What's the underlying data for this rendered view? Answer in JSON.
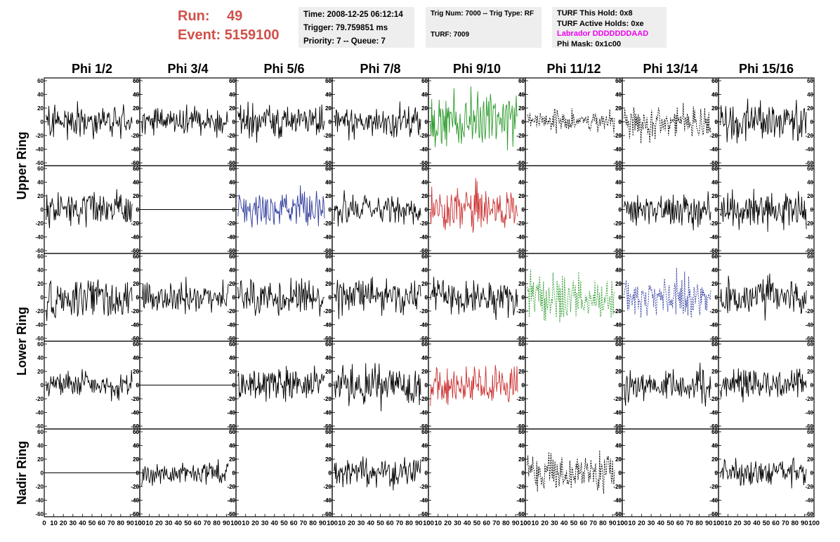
{
  "header": {
    "run_label": "Run:",
    "run_value": "49",
    "event_label": "Event:",
    "event_value": "5159100",
    "time": "Time: 2008-12-25 06:12:14",
    "trigger": "Trigger: 79.759851 ms",
    "priority": "Priority: 7 -- Queue: 7",
    "trig_num": "Trig Num: 7000 -- Trig Type: RF",
    "turf": "TURF: 7009",
    "turf_hold": "TURF This Hold: 0x8",
    "turf_active": "TURF Active Holds: 0xe",
    "labrador": "Labrador DDDDDDDAAD",
    "phi_mask": "Phi Mask: 0x1c00"
  },
  "colors": {
    "green": "#2a9a2a",
    "red": "#cc3333",
    "blue": "#2e3a9c",
    "black": "#000000",
    "header_red": "#d0504a",
    "magenta": "#ee00ee"
  },
  "chart_data": {
    "type": "line",
    "columns": [
      "Phi 1/2",
      "Phi 3/4",
      "Phi 5/6",
      "Phi 7/8",
      "Phi 9/10",
      "Phi 11/12",
      "Phi 13/14",
      "Phi 15/16"
    ],
    "rows": [
      "Upper Ring",
      "Lower Ring",
      "Nadir Ring"
    ],
    "ylim": [
      -60,
      60
    ],
    "yticks": [
      -60,
      -40,
      -20,
      0,
      20,
      40,
      60
    ],
    "xlim": [
      0,
      100
    ],
    "xticks": [
      0,
      10,
      20,
      30,
      40,
      50,
      60,
      70,
      80,
      90,
      100
    ],
    "panels": [
      [
        {
          "style": "black",
          "amp": 15
        },
        {
          "style": "black",
          "amp": 13
        },
        {
          "style": "black",
          "amp": 14
        },
        {
          "style": "black",
          "amp": 14
        },
        {
          "style": "green",
          "amp": 25
        },
        {
          "style": "black-dashed",
          "amp": 10
        },
        {
          "style": "black-dashed",
          "amp": 16
        },
        {
          "style": "black",
          "amp": 18
        }
      ],
      [
        {
          "style": "black",
          "amp": 15
        },
        {
          "style": "flat",
          "amp": 0
        },
        {
          "style": "blue",
          "amp": 17
        },
        {
          "style": "black",
          "amp": 14
        },
        {
          "style": "red",
          "amp": 20
        },
        {
          "style": "empty",
          "amp": 0
        },
        {
          "style": "black",
          "amp": 14
        },
        {
          "style": "black",
          "amp": 17
        }
      ],
      [
        {
          "style": "black",
          "amp": 17
        },
        {
          "style": "black",
          "amp": 14
        },
        {
          "style": "black",
          "amp": 16
        },
        {
          "style": "black",
          "amp": 15
        },
        {
          "style": "black",
          "amp": 16
        },
        {
          "style": "green-dashed",
          "amp": 20
        },
        {
          "style": "blue-dashed",
          "amp": 20
        },
        {
          "style": "black",
          "amp": 16
        }
      ],
      [
        {
          "style": "black",
          "amp": 12
        },
        {
          "style": "flat",
          "amp": 0
        },
        {
          "style": "black",
          "amp": 15
        },
        {
          "style": "black",
          "amp": 18
        },
        {
          "style": "red",
          "amp": 16
        },
        {
          "style": "empty",
          "amp": 0
        },
        {
          "style": "black",
          "amp": 15
        },
        {
          "style": "black",
          "amp": 16
        }
      ],
      [
        {
          "style": "flat",
          "amp": 0
        },
        {
          "style": "black",
          "amp": 11
        },
        {
          "style": "empty",
          "amp": 0
        },
        {
          "style": "black",
          "amp": 13
        },
        {
          "style": "empty",
          "amp": 0
        },
        {
          "style": "black-dashed",
          "amp": 18
        },
        {
          "style": "empty",
          "amp": 0
        },
        {
          "style": "black",
          "amp": 12
        }
      ]
    ]
  }
}
